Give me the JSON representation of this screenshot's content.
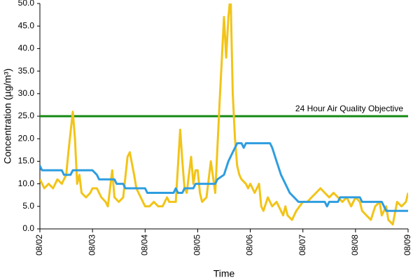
{
  "chart_data": {
    "type": "line",
    "xlabel": "Time",
    "ylabel": "Concentration (µg/m³)",
    "xlim": [
      0,
      168
    ],
    "xticks": [
      {
        "value": 0,
        "label": "08/02"
      },
      {
        "value": 24,
        "label": "08/03"
      },
      {
        "value": 48,
        "label": "08/04"
      },
      {
        "value": 72,
        "label": "08/05"
      },
      {
        "value": 96,
        "label": "08/06"
      },
      {
        "value": 120,
        "label": "08/07"
      },
      {
        "value": 144,
        "label": "08/08"
      },
      {
        "value": 168,
        "label": "08/09"
      }
    ],
    "ylim": [
      0,
      50
    ],
    "yticks": [
      {
        "value": 0,
        "label": "0.0"
      },
      {
        "value": 5,
        "label": "5.0"
      },
      {
        "value": 10,
        "label": "10.0"
      },
      {
        "value": 15,
        "label": "15.0"
      },
      {
        "value": 20,
        "label": "20.0"
      },
      {
        "value": 25,
        "label": "25.0"
      },
      {
        "value": 30,
        "label": "30.0"
      },
      {
        "value": 35,
        "label": "35.0"
      },
      {
        "value": 40,
        "label": "40.0"
      },
      {
        "value": 45,
        "label": "45.0"
      },
      {
        "value": 50,
        "label": "50.0"
      }
    ],
    "grid": false,
    "reference_lines": [
      {
        "value": 25,
        "label": "24 Hour Air Quality Objective",
        "color": "#148a14"
      }
    ],
    "series": [
      {
        "color": "#f2c418",
        "x": [
          0,
          2,
          4,
          6,
          8,
          10,
          12,
          13,
          15,
          16,
          17,
          18,
          19,
          21,
          23,
          24,
          26,
          28,
          30,
          31,
          33,
          34,
          36,
          38,
          40,
          41,
          43,
          44,
          46,
          48,
          50,
          52,
          54,
          56,
          58,
          59,
          62,
          64,
          65,
          66,
          67,
          69,
          70,
          71,
          72,
          73,
          74,
          76,
          78,
          80,
          82,
          84,
          85,
          86,
          87,
          88,
          89,
          90,
          91,
          92,
          94,
          95,
          96,
          98,
          100,
          101,
          102,
          104,
          106,
          108,
          110,
          111,
          112,
          113,
          115,
          117,
          120,
          122,
          124,
          126,
          128,
          130,
          132,
          134,
          136,
          138,
          140,
          142,
          144,
          146,
          147,
          149,
          151,
          153,
          155,
          156,
          158,
          159,
          161,
          163,
          165,
          167,
          168
        ],
        "values": [
          11,
          9,
          10,
          9,
          11,
          10,
          12,
          17,
          26,
          20,
          10,
          12,
          8,
          7,
          8,
          9,
          9,
          7,
          6,
          5,
          13,
          7,
          6,
          7,
          16,
          17,
          12,
          9,
          7,
          5,
          5,
          6,
          5,
          5,
          7,
          6,
          6,
          22,
          15,
          9,
          8,
          16,
          10,
          13,
          13,
          8,
          6,
          7,
          15,
          8,
          28,
          47,
          38,
          47,
          52,
          30,
          20,
          14,
          12,
          11,
          10,
          9,
          10,
          8,
          10,
          5,
          4,
          7,
          5,
          6,
          4,
          3,
          5,
          3,
          2,
          4,
          6,
          6,
          7,
          8,
          9,
          8,
          7,
          8,
          7,
          6,
          7,
          5,
          7,
          6,
          4,
          3,
          2,
          5,
          6,
          3,
          5,
          2,
          1,
          6,
          5,
          6,
          8
        ]
      },
      {
        "color": "#2e9de0",
        "x": [
          0,
          1,
          10,
          11,
          14,
          15,
          24,
          26,
          27,
          34,
          35,
          38,
          39,
          48,
          49,
          61,
          62,
          63,
          65,
          66,
          70,
          71,
          80,
          81,
          84,
          86,
          88,
          89,
          90,
          92,
          93,
          94,
          105,
          106,
          108,
          110,
          112,
          114,
          116,
          118,
          124,
          130,
          131,
          132,
          136,
          137,
          146,
          147,
          156,
          157,
          158,
          168
        ],
        "values": [
          14,
          13,
          13,
          12,
          12,
          13,
          13,
          12,
          11,
          11,
          10,
          10,
          9,
          9,
          8,
          8,
          9,
          8,
          8,
          9,
          9,
          10,
          10,
          11,
          12,
          15,
          17,
          18,
          19,
          19,
          18,
          19,
          19,
          18,
          15,
          12,
          10,
          8,
          7,
          6,
          6,
          6,
          5,
          6,
          6,
          7,
          7,
          6,
          6,
          5,
          4,
          4
        ]
      }
    ]
  }
}
